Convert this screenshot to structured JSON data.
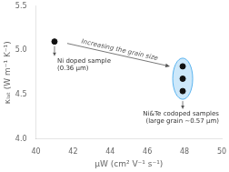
{
  "chart_data": {
    "type": "scatter",
    "x_label": "μW (cm² V⁻¹ s⁻¹)",
    "y_label": "κₗₐₜ (W m⁻¹ K⁻¹)",
    "series": [
      {
        "x": [
          41.0
        ],
        "values": [
          5.1
        ],
        "color": "#111111"
      },
      {
        "x": [
          47.9,
          47.9,
          47.9
        ],
        "values": [
          4.82,
          4.68,
          4.54
        ],
        "color": "#111111"
      }
    ],
    "xlim": [
      40,
      50
    ],
    "ylim": [
      4.0,
      5.5
    ],
    "xticks": [
      40,
      42,
      44,
      46,
      48,
      50
    ],
    "yticks": [
      {
        "value": 4.0,
        "label": "4.0"
      },
      {
        "value": 4.5,
        "label": "4.5"
      },
      {
        "value": 5.0,
        "label": "5.0"
      },
      {
        "value": 5.5,
        "label": "5.5"
      }
    ],
    "grid": false,
    "annotations": [
      "Increasing the grain size",
      "Ni doped sample\n(0.36 μm)",
      "Ni&Te codoped samples\n(large grain ~0.57 μm)"
    ]
  }
}
